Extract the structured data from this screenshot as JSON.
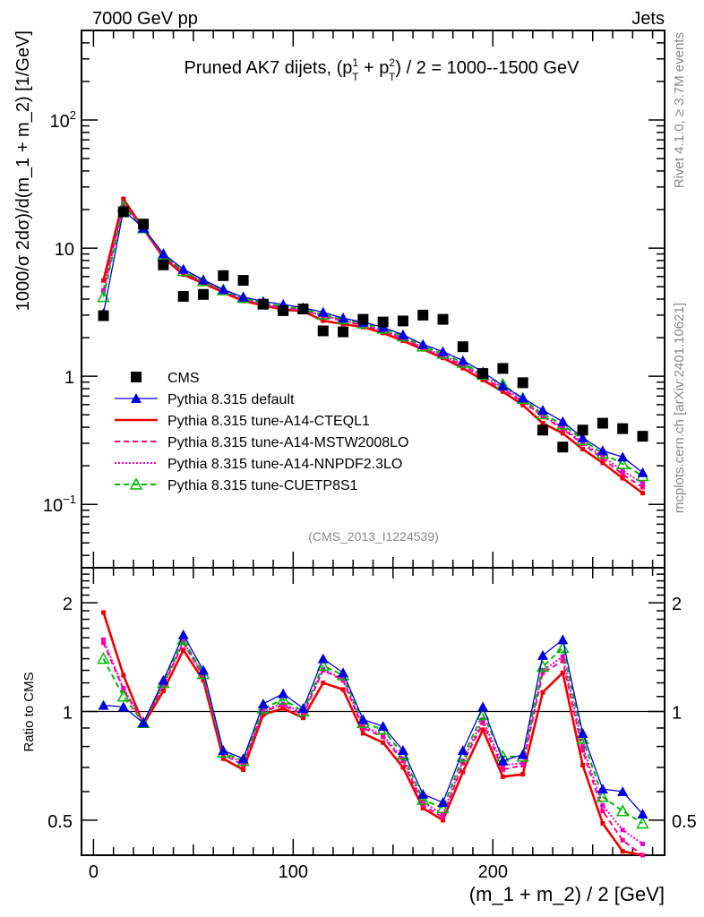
{
  "header": {
    "left": "7000 GeV pp",
    "right": "Jets"
  },
  "side_labels": {
    "rivet": "Rivet 4.1.0, ≥ 3.7M events",
    "mcplots": "mcplots.cern.ch [arXiv:2401.10621]"
  },
  "chart_data": [
    {
      "type": "line",
      "panel": "main",
      "title": "Pruned AK7 dijets, (p_T^1 + p_T^2) / 2 = 1000--1500 GeV",
      "title_parts": {
        "pre": "Pruned AK7 dijets, (p",
        "sup1": "1",
        "sub1": "T",
        "mid": " + p",
        "sup2": "2",
        "sub2": "T",
        "post": ") / 2 = 1000--1500 GeV"
      },
      "ylabel": "1000/σ  2dσ)/d(m_1 + m_2) [1/GeV]",
      "yscale": "log",
      "ylim": [
        0.032,
        500
      ],
      "xlim": [
        -6,
        286
      ],
      "yticks": [
        {
          "value": 0.1,
          "label": "10",
          "sup": "−1"
        },
        {
          "value": 1,
          "label": "1",
          "sup": ""
        },
        {
          "value": 10,
          "label": "10",
          "sup": ""
        },
        {
          "value": 100,
          "label": "10",
          "sup": "2"
        }
      ],
      "analysis_tag": "(CMS_2013_I1224539)",
      "legend_position": "middle-left",
      "x": [
        5,
        15,
        25,
        35,
        45,
        55,
        65,
        75,
        85,
        95,
        105,
        115,
        125,
        135,
        145,
        155,
        165,
        175,
        185,
        195,
        205,
        215,
        225,
        235,
        245,
        255,
        265,
        275
      ],
      "data": {
        "name": "CMS",
        "values": [
          2.97,
          19.2,
          15.4,
          7.4,
          4.2,
          4.35,
          6.1,
          5.6,
          3.65,
          3.25,
          3.35,
          2.26,
          2.22,
          2.78,
          2.65,
          2.7,
          3.0,
          2.78,
          1.7,
          1.05,
          1.15,
          0.89,
          0.38,
          0.28,
          0.38,
          0.43,
          0.39,
          0.34
        ]
      }
    },
    {
      "type": "line",
      "panel": "ratio",
      "ylabel": "Ratio to CMS",
      "xlabel": "(m_1 + m_2) / 2 [GeV]",
      "yscale": "log",
      "ylim": [
        0.4,
        2.5
      ],
      "xlim": [
        -6,
        286
      ],
      "yticks": [
        0.5,
        1,
        2
      ],
      "ytick_labels": [
        "0.5",
        "1",
        "2"
      ],
      "xticks": [
        0,
        100,
        200
      ],
      "xtick_labels": [
        "0",
        "100",
        "200"
      ],
      "reference_line": 1,
      "series": [
        {
          "name": "Pythia 8.315 default",
          "color": "#0000dd",
          "style": "solid",
          "marker": "filled-triangle",
          "ratio": [
            1.04,
            1.03,
            0.93,
            1.22,
            1.63,
            1.3,
            0.78,
            0.74,
            1.05,
            1.12,
            1.02,
            1.4,
            1.28,
            0.95,
            0.91,
            0.78,
            0.59,
            0.56,
            0.78,
            1.03,
            0.73,
            0.76,
            1.43,
            1.58,
            0.87,
            0.61,
            0.6,
            0.52
          ]
        },
        {
          "name": "Pythia 8.315 tune-A14-CTEQL1",
          "color": "#ee0000",
          "style": "solid-thick",
          "marker": "small-square",
          "ratio": [
            1.88,
            1.26,
            0.92,
            1.14,
            1.48,
            1.22,
            0.74,
            0.69,
            0.98,
            1.02,
            0.96,
            1.2,
            1.15,
            0.87,
            0.82,
            0.7,
            0.54,
            0.5,
            0.68,
            0.89,
            0.66,
            0.67,
            1.13,
            1.28,
            0.71,
            0.49,
            0.41,
            0.36
          ]
        },
        {
          "name": "Pythia 8.315 tune-A14-MSTW2008LO",
          "color": "#ff0088",
          "style": "dashed",
          "marker": "small-square",
          "ratio": [
            1.55,
            1.15,
            0.93,
            1.18,
            1.55,
            1.25,
            0.76,
            0.71,
            1.0,
            1.04,
            0.98,
            1.3,
            1.22,
            0.9,
            0.85,
            0.73,
            0.55,
            0.51,
            0.72,
            0.93,
            0.69,
            0.71,
            1.28,
            1.38,
            0.78,
            0.53,
            0.44,
            0.4
          ]
        },
        {
          "name": "Pythia 8.315 tune-A14-NNPDF2.3LO",
          "color": "#ee00cc",
          "style": "dotted",
          "marker": "small-square",
          "ratio": [
            1.58,
            1.16,
            0.93,
            1.18,
            1.56,
            1.26,
            0.77,
            0.72,
            1.01,
            1.05,
            0.99,
            1.31,
            1.23,
            0.91,
            0.86,
            0.74,
            0.56,
            0.52,
            0.73,
            0.95,
            0.71,
            0.72,
            1.3,
            1.42,
            0.8,
            0.55,
            0.47,
            0.43
          ]
        },
        {
          "name": "Pythia 8.315 tune-CUETP8S1",
          "color": "#00bb00",
          "style": "dashed",
          "marker": "open-triangle",
          "ratio": [
            1.4,
            1.1,
            0.93,
            1.2,
            1.58,
            1.27,
            0.77,
            0.73,
            1.02,
            1.08,
            1.0,
            1.34,
            1.26,
            0.93,
            0.89,
            0.76,
            0.57,
            0.54,
            0.75,
            0.98,
            0.75,
            0.75,
            1.33,
            1.5,
            0.84,
            0.58,
            0.53,
            0.49
          ]
        }
      ]
    }
  ]
}
